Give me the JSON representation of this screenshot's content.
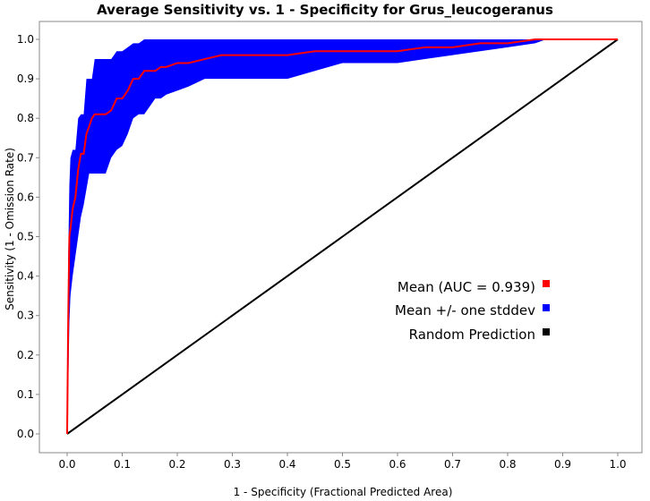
{
  "chart_data": {
    "type": "line",
    "title": "Average Sensitivity vs. 1 - Specificity for Grus_leucogeranus",
    "xlabel": "1 - Specificity (Fractional Predicted Area)",
    "ylabel": "Sensitivity (1 - Omission Rate)",
    "xlim": [
      0,
      1
    ],
    "ylim": [
      0,
      1
    ],
    "x_ticks": [
      "0.0",
      "0.1",
      "0.2",
      "0.3",
      "0.4",
      "0.5",
      "0.6",
      "0.7",
      "0.8",
      "0.9",
      "1.0"
    ],
    "y_ticks": [
      "0.0",
      "0.1",
      "0.2",
      "0.3",
      "0.4",
      "0.5",
      "0.6",
      "0.7",
      "0.8",
      "0.9",
      "1.0"
    ],
    "grid": false,
    "legend_position": "right",
    "legend": [
      {
        "label": "Mean (AUC = 0.939)",
        "color": "#ff0000"
      },
      {
        "label": "Mean +/- one stddev",
        "color": "#0000ff"
      },
      {
        "label": "Random Prediction",
        "color": "#000000"
      }
    ],
    "series": [
      {
        "name": "Mean (AUC = 0.939)",
        "color": "#ff0000",
        "x": [
          0.0,
          0.002,
          0.004,
          0.006,
          0.01,
          0.015,
          0.02,
          0.025,
          0.03,
          0.035,
          0.04,
          0.045,
          0.05,
          0.06,
          0.07,
          0.08,
          0.09,
          0.1,
          0.11,
          0.12,
          0.13,
          0.14,
          0.15,
          0.16,
          0.17,
          0.18,
          0.2,
          0.22,
          0.25,
          0.28,
          0.3,
          0.35,
          0.4,
          0.45,
          0.5,
          0.55,
          0.6,
          0.65,
          0.7,
          0.75,
          0.8,
          0.85,
          0.87,
          0.9,
          0.95,
          1.0
        ],
        "y": [
          0.0,
          0.3,
          0.5,
          0.52,
          0.57,
          0.6,
          0.67,
          0.71,
          0.71,
          0.76,
          0.78,
          0.8,
          0.81,
          0.81,
          0.81,
          0.82,
          0.85,
          0.85,
          0.87,
          0.9,
          0.9,
          0.92,
          0.92,
          0.92,
          0.93,
          0.93,
          0.94,
          0.94,
          0.95,
          0.96,
          0.96,
          0.96,
          0.96,
          0.97,
          0.97,
          0.97,
          0.97,
          0.98,
          0.98,
          0.99,
          0.99,
          1.0,
          1.0,
          1.0,
          1.0,
          1.0
        ]
      },
      {
        "name": "Mean +/- one stddev (upper)",
        "color": "#0000ff",
        "x": [
          0.0,
          0.002,
          0.004,
          0.006,
          0.01,
          0.015,
          0.02,
          0.025,
          0.03,
          0.035,
          0.04,
          0.045,
          0.05,
          0.06,
          0.07,
          0.08,
          0.09,
          0.1,
          0.11,
          0.12,
          0.13,
          0.14,
          0.15,
          0.16,
          0.17,
          0.18,
          0.2,
          0.22,
          0.25,
          0.28,
          0.3,
          0.35,
          0.4,
          0.45,
          0.5,
          0.55,
          0.6,
          0.65,
          0.7,
          0.75,
          0.8,
          0.85,
          0.87,
          0.9,
          0.95,
          1.0
        ],
        "y": [
          0.0,
          0.45,
          0.63,
          0.7,
          0.72,
          0.72,
          0.8,
          0.81,
          0.81,
          0.9,
          0.9,
          0.9,
          0.95,
          0.95,
          0.95,
          0.95,
          0.97,
          0.97,
          0.98,
          0.99,
          0.99,
          1.0,
          1.0,
          1.0,
          1.0,
          1.0,
          1.0,
          1.0,
          1.0,
          1.0,
          1.0,
          1.0,
          1.0,
          1.0,
          1.0,
          1.0,
          1.0,
          1.0,
          1.0,
          1.0,
          1.0,
          1.0,
          1.0,
          1.0,
          1.0,
          1.0
        ]
      },
      {
        "name": "Mean +/- one stddev (lower)",
        "color": "#0000ff",
        "x": [
          0.0,
          0.002,
          0.004,
          0.006,
          0.01,
          0.015,
          0.02,
          0.025,
          0.03,
          0.035,
          0.04,
          0.045,
          0.05,
          0.06,
          0.07,
          0.08,
          0.09,
          0.1,
          0.11,
          0.12,
          0.13,
          0.14,
          0.15,
          0.16,
          0.17,
          0.18,
          0.2,
          0.22,
          0.25,
          0.28,
          0.3,
          0.35,
          0.4,
          0.45,
          0.5,
          0.55,
          0.6,
          0.65,
          0.7,
          0.75,
          0.8,
          0.85,
          0.87,
          0.9,
          0.95,
          1.0
        ],
        "y": [
          0.0,
          0.12,
          0.28,
          0.35,
          0.4,
          0.45,
          0.5,
          0.55,
          0.58,
          0.62,
          0.66,
          0.66,
          0.66,
          0.66,
          0.66,
          0.7,
          0.72,
          0.73,
          0.76,
          0.8,
          0.81,
          0.81,
          0.83,
          0.85,
          0.85,
          0.86,
          0.87,
          0.88,
          0.9,
          0.9,
          0.9,
          0.9,
          0.9,
          0.92,
          0.94,
          0.94,
          0.94,
          0.95,
          0.96,
          0.97,
          0.98,
          0.99,
          1.0,
          1.0,
          1.0,
          1.0
        ]
      },
      {
        "name": "Random Prediction",
        "color": "#000000",
        "x": [
          0.0,
          1.0
        ],
        "y": [
          0.0,
          1.0
        ]
      }
    ]
  }
}
